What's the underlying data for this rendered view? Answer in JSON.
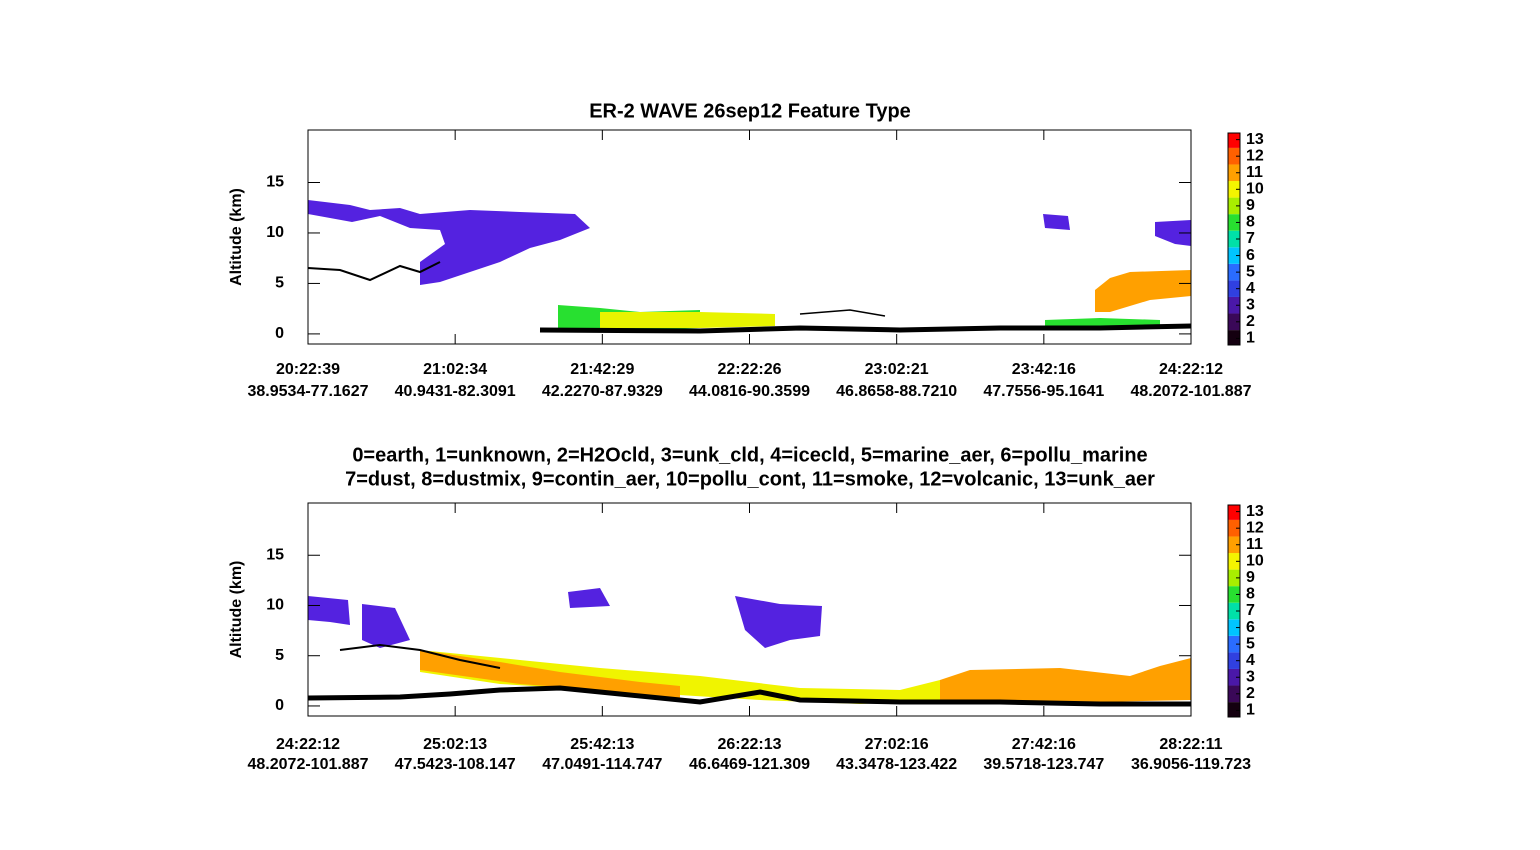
{
  "chart_data": [
    {
      "type": "curtain",
      "title": "ER-2 WAVE  26sep12  Feature Type",
      "y_label": "Altitude (km)",
      "ylim": [
        -1,
        20.2
      ],
      "yticks": [
        0,
        5,
        10,
        15
      ],
      "categories": [
        "20:22:39",
        "21:02:34",
        "21:42:29",
        "22:22:26",
        "23:02:21",
        "23:42:16",
        "24:22:12"
      ],
      "x_locations": [
        "38.9534-77.1627",
        "40.9431-82.3091",
        "42.2270-87.9329",
        "44.0816-90.3599",
        "46.8658-88.7210",
        "47.7556-95.1641",
        "48.2072-101.887"
      ],
      "colorbar": {
        "clim": [
          0.6,
          13.4
        ],
        "ticks": [
          1,
          2,
          3,
          4,
          5,
          6,
          7,
          8,
          9,
          10,
          11,
          12,
          13
        ],
        "colors": [
          "#140010",
          "#3a0858",
          "#4a18a8",
          "#3040e0",
          "#2a6cff",
          "#00c4ff",
          "#00e0a8",
          "#28e030",
          "#a8ee00",
          "#f4f400",
          "#ffa000",
          "#ff6000",
          "#ff0000"
        ]
      }
    },
    {
      "type": "curtain",
      "title": [
        "0=earth, 1=unknown, 2=H2Ocld, 3=unk_cld, 4=icecld, 5=marine_aer, 6=pollu_marine",
        "7=dust, 8=dustmix, 9=contin_aer, 10=pollu_cont, 11=smoke, 12=volcanic, 13=unk_aer"
      ],
      "y_label": "Altitude (km)",
      "ylim": [
        -1,
        20.2
      ],
      "yticks": [
        0,
        5,
        10,
        15
      ],
      "categories": [
        "24:22:12",
        "25:02:13",
        "25:42:13",
        "26:22:13",
        "27:02:16",
        "27:42:16",
        "28:22:11"
      ],
      "x_locations": [
        "48.2072-101.887",
        "47.5423-108.147",
        "47.0491-114.747",
        "46.6469-121.309",
        "43.3478-123.422",
        "39.5718-123.747",
        "36.9056-119.723"
      ],
      "colorbar": {
        "clim": [
          0.6,
          13.4
        ],
        "ticks": [
          1,
          2,
          3,
          4,
          5,
          6,
          7,
          8,
          9,
          10,
          11,
          12,
          13
        ],
        "colors": [
          "#140010",
          "#3a0858",
          "#4a18a8",
          "#3040e0",
          "#2a6cff",
          "#00c4ff",
          "#00e0a8",
          "#28e030",
          "#a8ee00",
          "#f4f400",
          "#ffa000",
          "#ff6000",
          "#ff0000"
        ]
      }
    }
  ]
}
